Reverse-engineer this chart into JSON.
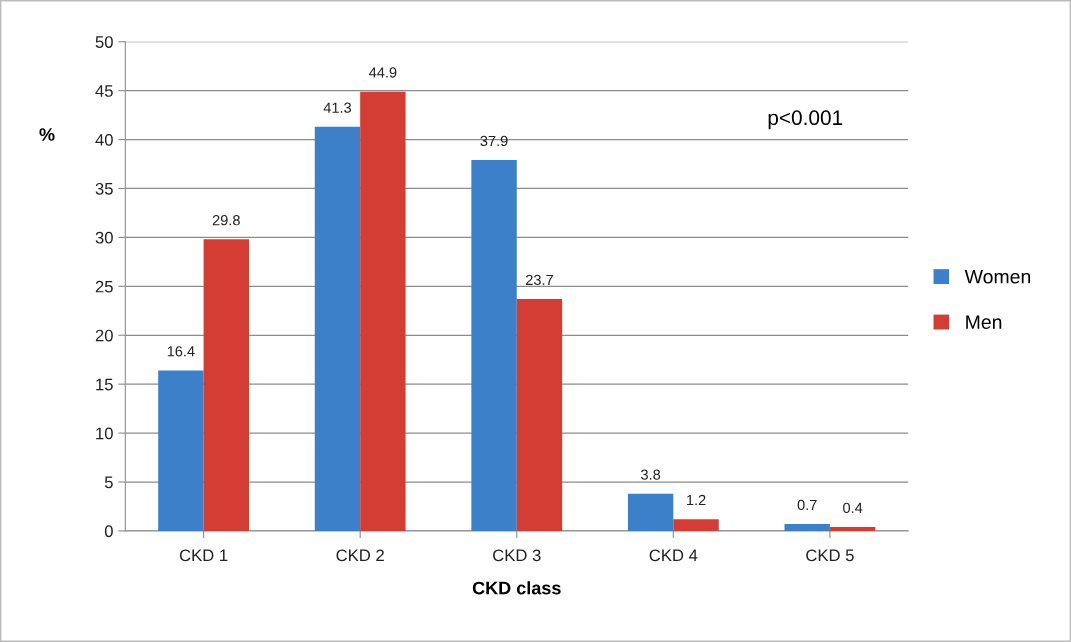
{
  "chart_data": {
    "type": "bar",
    "xlabel": "CKD class",
    "ylabel": "%",
    "categories": [
      "CKD 1",
      "CKD 2",
      "CKD 3",
      "CKD 4",
      "CKD 5"
    ],
    "series": [
      {
        "name": "Women",
        "color": "#3b80c9",
        "values": [
          16.4,
          41.3,
          37.9,
          3.8,
          0.7
        ]
      },
      {
        "name": "Men",
        "color": "#d43d33",
        "values": [
          29.8,
          44.9,
          23.7,
          1.2,
          0.4
        ]
      }
    ],
    "ylim": [
      0,
      50
    ],
    "yticks": [
      0,
      5,
      10,
      15,
      20,
      25,
      30,
      35,
      40,
      45,
      50
    ],
    "grid": "y",
    "legend": "right",
    "data_labels": true,
    "annotations": [
      "p<0.001"
    ]
  }
}
